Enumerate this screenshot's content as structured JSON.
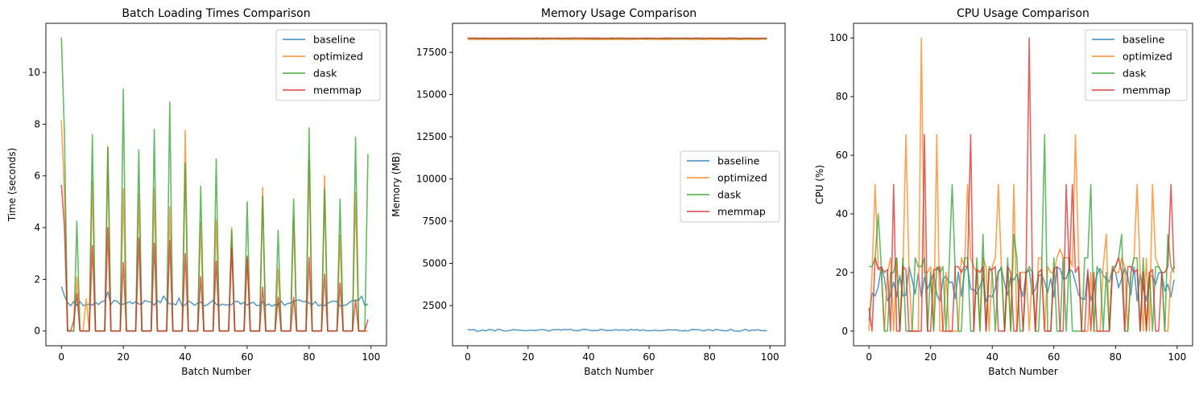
{
  "colors": {
    "baseline": "#1f77b4",
    "optimized": "#ff7f0e",
    "dask": "#2ca02c",
    "memmap": "#d62728"
  },
  "chart_data": [
    {
      "type": "line",
      "title": "Batch Loading Times Comparison",
      "xlabel": "Batch Number",
      "ylabel": "Time (seconds)",
      "xlim": [
        -5,
        105
      ],
      "ylim": [
        -0.57,
        11.9
      ],
      "xticks": [
        0,
        20,
        40,
        60,
        80,
        100
      ],
      "yticks": [
        0,
        2,
        4,
        6,
        8,
        10
      ],
      "legend_position": "top-right",
      "series": [
        {
          "name": "baseline",
          "mode": "noise",
          "base": 1.08,
          "amp": 0.12,
          "seed": 3,
          "overrides": [
            [
              0,
              1.72
            ],
            [
              1,
              1.35
            ],
            [
              2,
              1.1
            ],
            [
              15,
              1.52
            ],
            [
              33,
              1.35
            ],
            [
              38,
              1.28
            ],
            [
              97,
              1.35
            ],
            [
              99,
              1.05
            ]
          ]
        },
        {
          "name": "optimized",
          "mode": "spikes",
          "base": 0,
          "spikes": [
            [
              0,
              8.15
            ],
            [
              1,
              5.3
            ],
            [
              5,
              2.1
            ],
            [
              8,
              1.25
            ],
            [
              10,
              5.8
            ],
            [
              15,
              7.15
            ],
            [
              20,
              5.5
            ],
            [
              25,
              5.3
            ],
            [
              30,
              5.5
            ],
            [
              35,
              4.8
            ],
            [
              40,
              7.75
            ],
            [
              45,
              4.2
            ],
            [
              50,
              4.3
            ],
            [
              55,
              4.0
            ],
            [
              60,
              2.8
            ],
            [
              65,
              5.55
            ],
            [
              70,
              2.4
            ],
            [
              75,
              4.4
            ],
            [
              80,
              6.65
            ],
            [
              85,
              6.0
            ],
            [
              90,
              3.7
            ],
            [
              95,
              5.35
            ]
          ]
        },
        {
          "name": "dask",
          "mode": "spikes",
          "base": 0,
          "spikes": [
            [
              0,
              11.35
            ],
            [
              1,
              7.6
            ],
            [
              5,
              4.25
            ],
            [
              10,
              7.6
            ],
            [
              15,
              7.1
            ],
            [
              20,
              9.35
            ],
            [
              25,
              7.0
            ],
            [
              30,
              7.8
            ],
            [
              35,
              8.85
            ],
            [
              40,
              6.5
            ],
            [
              45,
              5.6
            ],
            [
              50,
              6.65
            ],
            [
              55,
              3.9
            ],
            [
              60,
              5.0
            ],
            [
              65,
              5.2
            ],
            [
              70,
              3.9
            ],
            [
              75,
              5.1
            ],
            [
              80,
              7.85
            ],
            [
              85,
              5.5
            ],
            [
              90,
              5.1
            ],
            [
              95,
              7.5
            ],
            [
              99,
              6.85
            ]
          ]
        },
        {
          "name": "memmap",
          "mode": "spikes",
          "base": 0,
          "spikes": [
            [
              0,
              5.65
            ],
            [
              1,
              4.0
            ],
            [
              4,
              0.4
            ],
            [
              5,
              1.45
            ],
            [
              10,
              3.3
            ],
            [
              15,
              4.0
            ],
            [
              20,
              2.65
            ],
            [
              25,
              3.6
            ],
            [
              30,
              3.4
            ],
            [
              35,
              3.5
            ],
            [
              40,
              3.0
            ],
            [
              45,
              2.1
            ],
            [
              50,
              2.7
            ],
            [
              55,
              3.2
            ],
            [
              60,
              2.9
            ],
            [
              65,
              1.7
            ],
            [
              70,
              1.3
            ],
            [
              75,
              1.3
            ],
            [
              80,
              2.85
            ],
            [
              85,
              2.2
            ],
            [
              90,
              1.85
            ],
            [
              95,
              1.2
            ],
            [
              99,
              0.45
            ]
          ]
        }
      ]
    },
    {
      "type": "line",
      "title": "Memory Usage Comparison",
      "xlabel": "Batch Number",
      "ylabel": "Memory (MB)",
      "xlim": [
        -5,
        105
      ],
      "ylim": [
        120,
        19220
      ],
      "xticks": [
        0,
        20,
        40,
        60,
        80,
        100
      ],
      "yticks": [
        2500,
        5000,
        7500,
        10000,
        12500,
        15000,
        17500
      ],
      "legend_position": "center-right",
      "series": [
        {
          "name": "baseline",
          "mode": "noise",
          "base": 1040,
          "amp": 60,
          "seed": 11,
          "overrides": []
        },
        {
          "name": "optimized",
          "mode": "noise",
          "base": 18270,
          "amp": 12,
          "seed": 5,
          "overrides": []
        },
        {
          "name": "dask",
          "mode": "noise",
          "base": 18320,
          "amp": 10,
          "seed": 7,
          "overrides": []
        },
        {
          "name": "memmap",
          "mode": "noise",
          "base": 18340,
          "amp": 8,
          "seed": 9,
          "overrides": []
        }
      ]
    },
    {
      "type": "line",
      "title": "CPU Usage Comparison",
      "xlabel": "Batch Number",
      "ylabel": "CPU (%)",
      "xlim": [
        -5,
        105
      ],
      "ylim": [
        -5,
        105
      ],
      "xticks": [
        0,
        20,
        40,
        60,
        80,
        100
      ],
      "yticks": [
        0,
        20,
        40,
        60,
        80,
        100
      ],
      "legend_position": "top-right",
      "series": [
        {
          "name": "baseline",
          "mode": "noise",
          "base": 16,
          "amp": 6,
          "seed": 13,
          "overrides": [
            [
              0,
              3.5
            ],
            [
              1,
              13
            ],
            [
              2,
              12
            ]
          ]
        },
        {
          "name": "optimized",
          "mode": "random",
          "seed": 21,
          "vals": [
            0,
            20,
            22,
            0,
            25
          ],
          "overrides": [
            [
              2,
              50
            ],
            [
              12,
              67
            ],
            [
              17,
              100
            ],
            [
              22,
              67
            ],
            [
              32,
              50
            ],
            [
              42,
              50
            ],
            [
              47,
              50
            ],
            [
              62,
              28
            ],
            [
              67,
              67
            ],
            [
              77,
              33
            ],
            [
              87,
              50
            ],
            [
              92,
              50
            ]
          ]
        },
        {
          "name": "dask",
          "mode": "random",
          "seed": 37,
          "vals": [
            0,
            20,
            25,
            0,
            22
          ],
          "overrides": [
            [
              3,
              40
            ],
            [
              9,
              25
            ],
            [
              27,
              50
            ],
            [
              37,
              33
            ],
            [
              47,
              33
            ],
            [
              57,
              67
            ],
            [
              72,
              50
            ],
            [
              82,
              33
            ],
            [
              97,
              33
            ]
          ]
        },
        {
          "name": "memmap",
          "mode": "random",
          "seed": 53,
          "vals": [
            0,
            20,
            22,
            0,
            21
          ],
          "overrides": [
            [
              0,
              8
            ],
            [
              2,
              25
            ],
            [
              8,
              50
            ],
            [
              18,
              67
            ],
            [
              33,
              67
            ],
            [
              52,
              100
            ],
            [
              64,
              50
            ],
            [
              66,
              50
            ],
            [
              81,
              25
            ],
            [
              98,
              50
            ]
          ]
        }
      ]
    }
  ]
}
